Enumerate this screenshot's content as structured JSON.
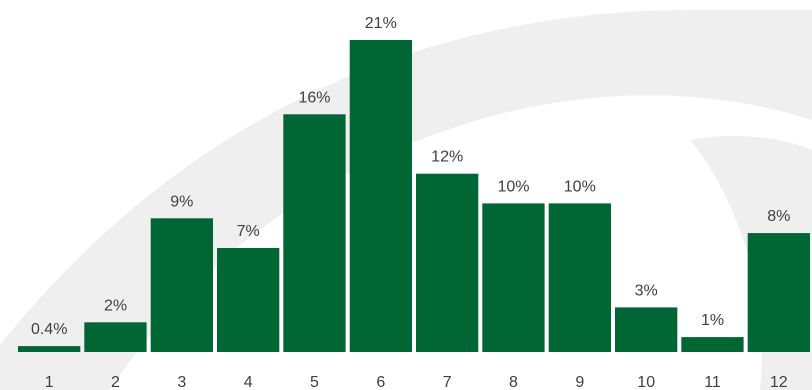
{
  "chart_data": {
    "type": "bar",
    "title": "",
    "xlabel": "",
    "ylabel": "",
    "categories": [
      "1",
      "2",
      "3",
      "4",
      "5",
      "6",
      "7",
      "8",
      "9",
      "10",
      "11",
      "12"
    ],
    "values": [
      0.4,
      2,
      9,
      7,
      16,
      21,
      12,
      10,
      10,
      3,
      1,
      8
    ],
    "data_labels": [
      "0.4%",
      "2%",
      "9%",
      "7%",
      "16%",
      "21%",
      "12%",
      "10%",
      "10%",
      "3%",
      "1%",
      "8%"
    ],
    "ylim": [
      0,
      21
    ],
    "grid": false,
    "legend": "none",
    "colors": {
      "bar": "#006633",
      "text": "#404040",
      "background_arc": "#efefef"
    }
  }
}
